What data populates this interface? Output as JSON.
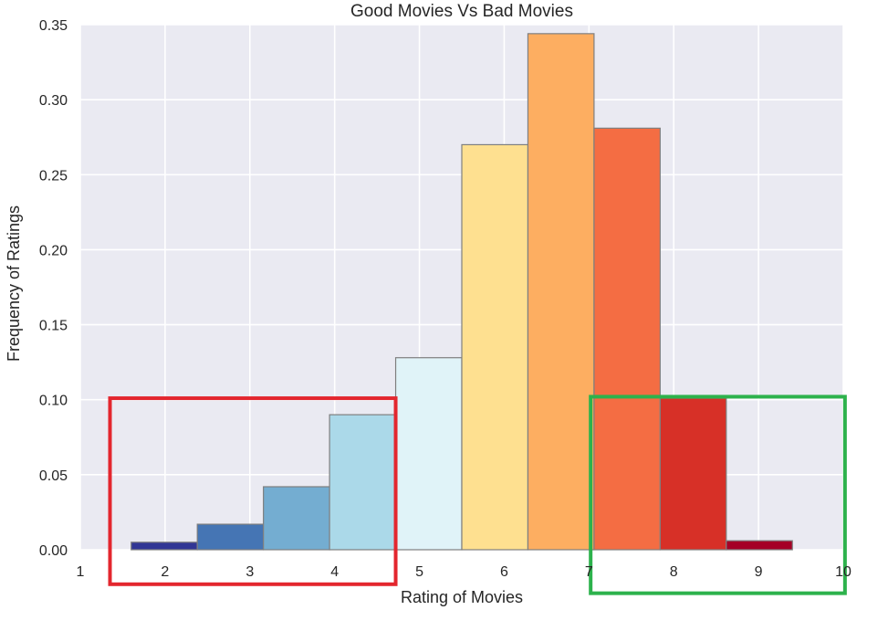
{
  "chart_data": {
    "type": "bar",
    "title": "Good Movies Vs Bad Movies",
    "xlabel": "Rating of Movies",
    "ylabel": "Frequency of Ratings",
    "xlim": [
      1,
      10
    ],
    "ylim": [
      0,
      0.35
    ],
    "x_ticks": [
      "1",
      "2",
      "3",
      "4",
      "5",
      "6",
      "7",
      "8",
      "9",
      "10"
    ],
    "y_ticks": [
      "0.00",
      "0.05",
      "0.10",
      "0.15",
      "0.20",
      "0.25",
      "0.30",
      "0.35"
    ],
    "grid": true,
    "bins": [
      {
        "x_start": 1.6,
        "x_end": 2.38,
        "value": 0.005,
        "color": "#313695"
      },
      {
        "x_start": 2.38,
        "x_end": 3.16,
        "value": 0.017,
        "color": "#4575b4"
      },
      {
        "x_start": 3.16,
        "x_end": 3.94,
        "value": 0.042,
        "color": "#74add1"
      },
      {
        "x_start": 3.94,
        "x_end": 4.72,
        "value": 0.09,
        "color": "#abd9e9"
      },
      {
        "x_start": 4.72,
        "x_end": 5.5,
        "value": 0.128,
        "color": "#e0f3f8"
      },
      {
        "x_start": 5.5,
        "x_end": 6.28,
        "value": 0.27,
        "color": "#fee090"
      },
      {
        "x_start": 6.28,
        "x_end": 7.06,
        "value": 0.344,
        "color": "#fdae61"
      },
      {
        "x_start": 7.06,
        "x_end": 7.84,
        "value": 0.281,
        "color": "#f46d43"
      },
      {
        "x_start": 7.84,
        "x_end": 8.62,
        "value": 0.101,
        "color": "#d73027"
      },
      {
        "x_start": 8.62,
        "x_end": 9.4,
        "value": 0.006,
        "color": "#a50026"
      }
    ],
    "highlights": [
      {
        "x_start": 1.35,
        "x_end": 4.72,
        "y_low": -0.023,
        "y_high": 0.101,
        "color": "#e3262e"
      },
      {
        "x_start": 7.02,
        "x_end": 10.02,
        "y_low": -0.029,
        "y_high": 0.102,
        "color": "#2db24c"
      }
    ],
    "colors": {
      "background": "#eaeaf2",
      "grid": "#ffffff",
      "text": "#262626",
      "bar_edge": "#7f7f7f"
    }
  }
}
